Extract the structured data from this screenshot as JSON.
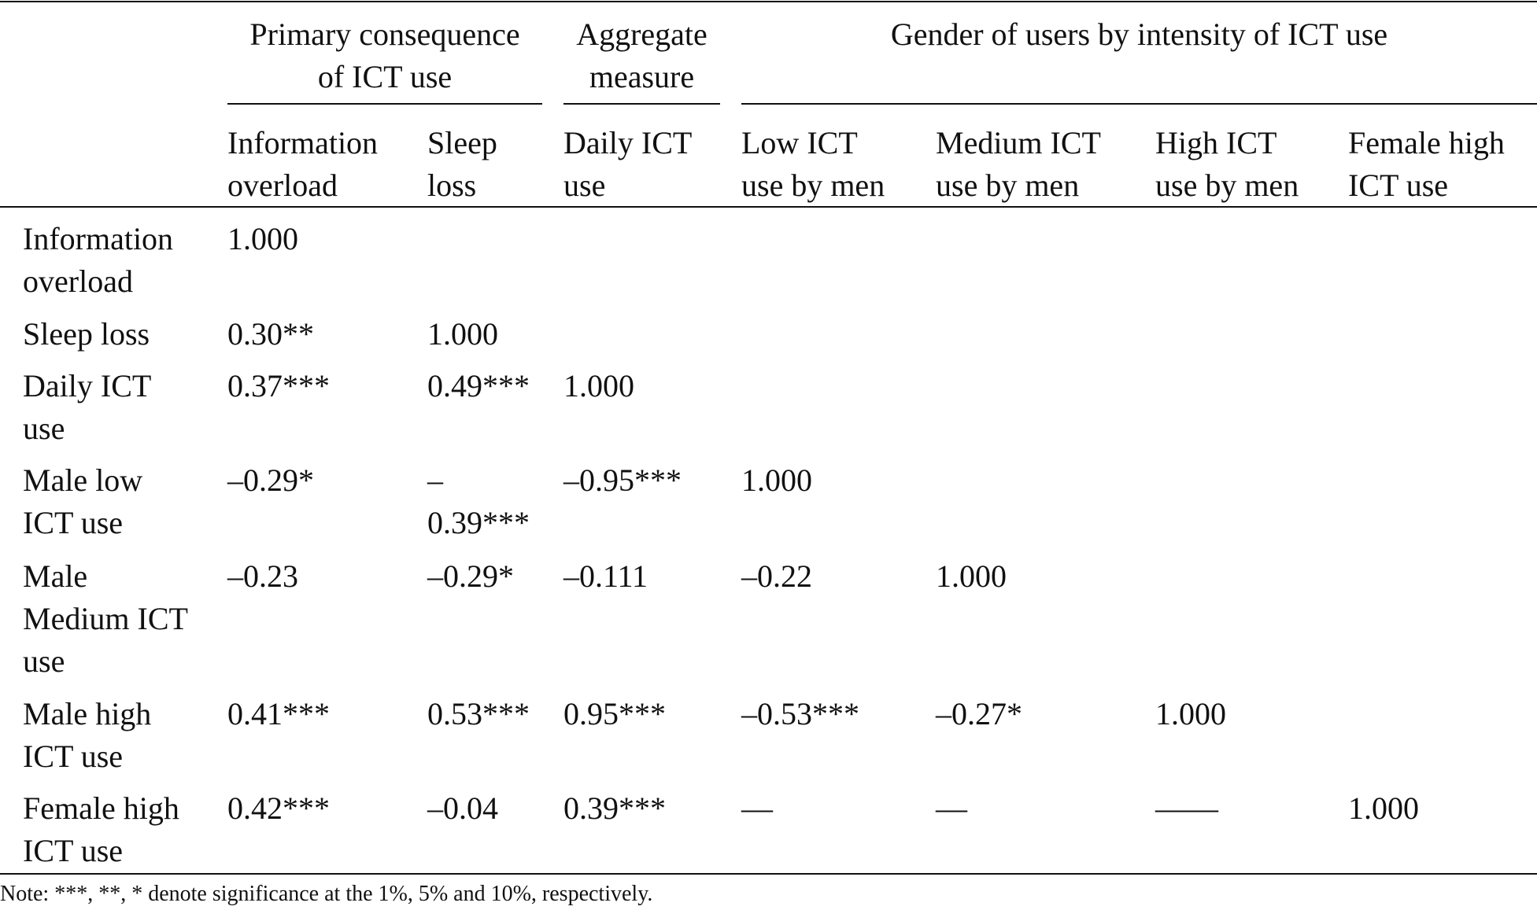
{
  "table": {
    "group_headers": [
      {
        "label": "Primary consequence\nof ICT use"
      },
      {
        "label": "Aggregate\nmeasure"
      },
      {
        "label": "Gender of users by intensity of ICT use"
      }
    ],
    "column_headers": [
      "Information\noverload",
      "Sleep\nloss",
      "Daily ICT\nuse",
      "Low ICT\nuse by men",
      "Medium ICT\nuse by men",
      "High ICT\nuse by men",
      "Female high\nICT use"
    ],
    "rows": [
      {
        "label": "Information\noverload",
        "values": [
          "1.000"
        ]
      },
      {
        "label": "Sleep loss",
        "values": [
          "0.30**",
          "1.000"
        ]
      },
      {
        "label": "Daily ICT\nuse",
        "values": [
          "0.37***",
          "0.49***",
          "1.000"
        ]
      },
      {
        "label": "Male low\nICT use",
        "values": [
          "–0.29*",
          "–\n0.39***",
          "–0.95***",
          "1.000"
        ]
      },
      {
        "label": "Male\nMedium ICT\nuse",
        "values": [
          "–0.23",
          "–0.29*",
          "–0.111",
          "–0.22",
          "1.000"
        ]
      },
      {
        "label": "Male high\nICT use",
        "values": [
          "0.41***",
          "0.53***",
          "0.95***",
          "–0.53***",
          "–0.27*",
          "1.000"
        ]
      },
      {
        "label": "Female high\nICT use",
        "values": [
          "0.42***",
          "–0.04",
          "0.39***",
          "—",
          "—",
          "——",
          "1.000"
        ]
      }
    ],
    "note": "Note: ***, **, * denote significance at the 1%, 5% and 10%, respectively."
  }
}
